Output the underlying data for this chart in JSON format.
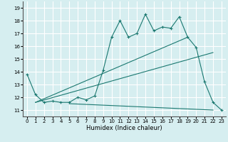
{
  "xlabel": "Humidex (Indice chaleur)",
  "bg_color": "#d6eef0",
  "grid_color": "#ffffff",
  "line_color": "#1a7870",
  "xlim": [
    -0.5,
    23.5
  ],
  "ylim": [
    10.5,
    19.5
  ],
  "xticks": [
    0,
    1,
    2,
    3,
    4,
    5,
    6,
    7,
    8,
    9,
    10,
    11,
    12,
    13,
    14,
    15,
    16,
    17,
    18,
    19,
    20,
    21,
    22,
    23
  ],
  "yticks": [
    11,
    12,
    13,
    14,
    15,
    16,
    17,
    18,
    19
  ],
  "series": {
    "main": {
      "x": [
        0,
        1,
        2,
        3,
        4,
        5,
        6,
        7,
        8,
        9,
        10,
        11,
        12,
        13,
        14,
        15,
        16,
        17,
        18,
        19,
        20,
        21,
        22,
        23
      ],
      "y": [
        13.8,
        12.2,
        11.6,
        11.7,
        11.6,
        11.6,
        12.0,
        11.8,
        12.1,
        14.1,
        16.7,
        18.0,
        16.7,
        17.0,
        18.5,
        17.2,
        17.5,
        17.4,
        18.3,
        16.7,
        15.9,
        13.2,
        11.6,
        11.0
      ]
    },
    "upper_linear": {
      "x": [
        1,
        19
      ],
      "y": [
        11.6,
        16.7
      ]
    },
    "lower_linear": {
      "x": [
        1,
        22
      ],
      "y": [
        11.6,
        15.5
      ]
    },
    "flat": {
      "x": [
        5,
        22
      ],
      "y": [
        11.5,
        11.0
      ]
    }
  }
}
